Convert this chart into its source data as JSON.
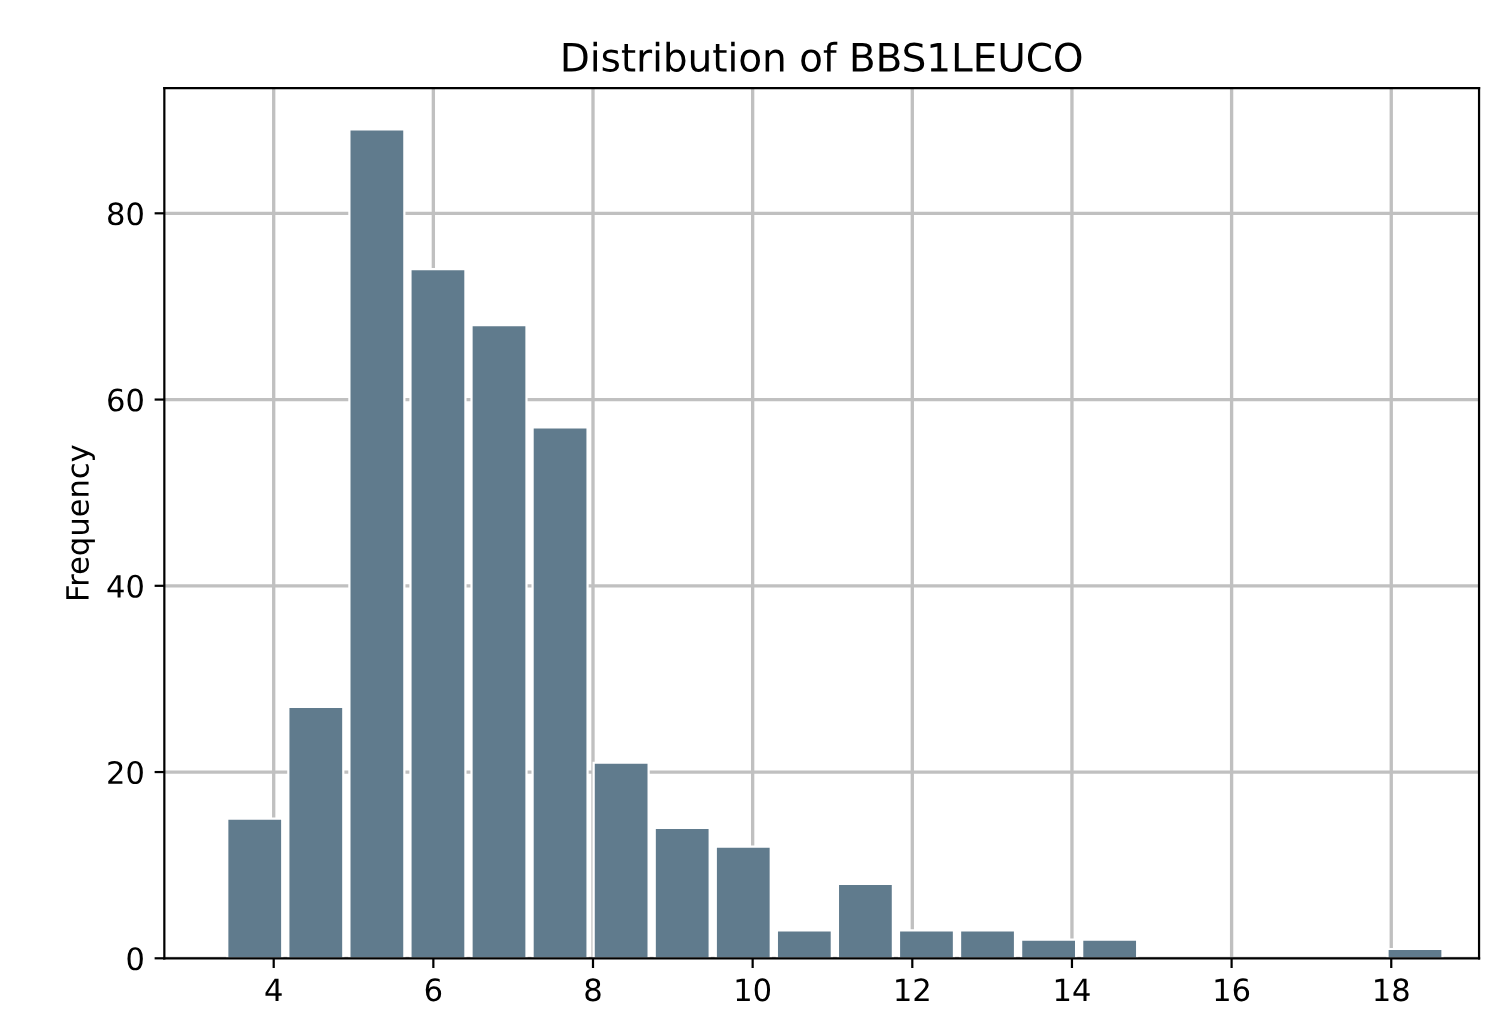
{
  "chart_data": {
    "type": "histogram",
    "title": "Distribution of BBS1LEUCO",
    "ylabel": "Frequency",
    "bins": [
      3.38,
      4.145,
      4.91,
      5.675,
      6.44,
      7.205,
      7.97,
      8.735,
      9.5,
      10.265,
      11.03,
      11.795,
      12.56,
      13.325,
      14.09,
      14.855,
      15.62,
      16.385,
      17.15,
      17.915,
      18.68
    ],
    "values": [
      15,
      27,
      89,
      74,
      68,
      57,
      21,
      14,
      12,
      3,
      8,
      3,
      3,
      2,
      2,
      0,
      0,
      0,
      0,
      1
    ],
    "color": "#607b8d",
    "xlim": [
      2.63,
      19.1
    ],
    "xticks": [
      4,
      6,
      8,
      10,
      12,
      14,
      16,
      18
    ],
    "ylim": [
      0,
      93.45
    ],
    "yticks": [
      0,
      20,
      40,
      60,
      80
    ],
    "grid": true
  }
}
